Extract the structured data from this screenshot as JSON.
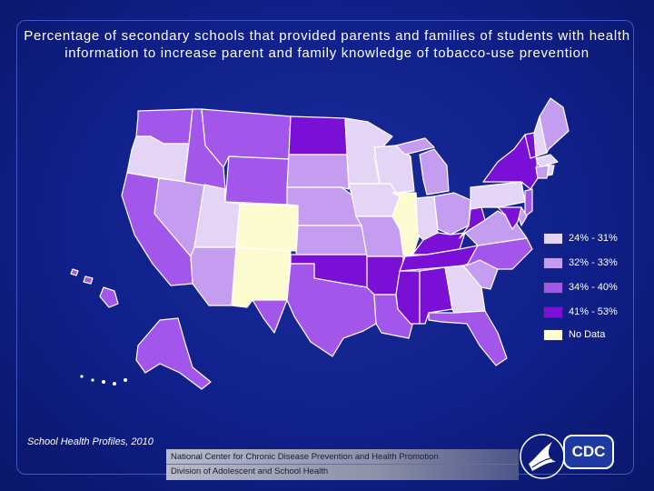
{
  "title": "Percentage of secondary schools that provided parents and families of students with health information to increase parent and family knowledge of tobacco-use prevention",
  "colors": {
    "c1": "#e4d4f6",
    "c2": "#c49cf0",
    "c3": "#a257ea",
    "c4": "#7a10d6",
    "nodata": "#fcfcd0",
    "background": "#10208a",
    "border": "#ffffff"
  },
  "legend": [
    {
      "label": "24% - 31%",
      "color_key": "c1"
    },
    {
      "label": "32% - 33%",
      "color_key": "c2"
    },
    {
      "label": "34% - 40%",
      "color_key": "c3"
    },
    {
      "label": "41% - 53%",
      "color_key": "c4"
    },
    {
      "label": "No Data",
      "color_key": "nodata"
    }
  ],
  "states": [
    {
      "id": "WA",
      "class": "c3"
    },
    {
      "id": "OR",
      "class": "c1"
    },
    {
      "id": "CA",
      "class": "c3"
    },
    {
      "id": "NV",
      "class": "c2"
    },
    {
      "id": "ID",
      "class": "c3"
    },
    {
      "id": "MT",
      "class": "c3"
    },
    {
      "id": "WY",
      "class": "c3"
    },
    {
      "id": "UT",
      "class": "c1"
    },
    {
      "id": "AZ",
      "class": "c2"
    },
    {
      "id": "CO",
      "class": "nodata"
    },
    {
      "id": "NM",
      "class": "nodata"
    },
    {
      "id": "ND",
      "class": "c4"
    },
    {
      "id": "SD",
      "class": "c2"
    },
    {
      "id": "NE",
      "class": "c2"
    },
    {
      "id": "KS",
      "class": "c2"
    },
    {
      "id": "OK",
      "class": "c4"
    },
    {
      "id": "TX",
      "class": "c3"
    },
    {
      "id": "MN",
      "class": "c1"
    },
    {
      "id": "IA",
      "class": "c1"
    },
    {
      "id": "MO",
      "class": "c2"
    },
    {
      "id": "AR",
      "class": "c4"
    },
    {
      "id": "LA",
      "class": "c3"
    },
    {
      "id": "WI",
      "class": "c1"
    },
    {
      "id": "IL",
      "class": "nodata"
    },
    {
      "id": "MI",
      "class": "c2"
    },
    {
      "id": "IN",
      "class": "c1"
    },
    {
      "id": "OH",
      "class": "c2"
    },
    {
      "id": "KY",
      "class": "c4"
    },
    {
      "id": "TN",
      "class": "c4"
    },
    {
      "id": "MS",
      "class": "c4"
    },
    {
      "id": "AL",
      "class": "c4"
    },
    {
      "id": "GA",
      "class": "c1"
    },
    {
      "id": "FL",
      "class": "c3"
    },
    {
      "id": "SC",
      "class": "c2"
    },
    {
      "id": "NC",
      "class": "c3"
    },
    {
      "id": "VA",
      "class": "c2"
    },
    {
      "id": "WV",
      "class": "c4"
    },
    {
      "id": "PA",
      "class": "c1"
    },
    {
      "id": "NY",
      "class": "c4"
    },
    {
      "id": "VT",
      "class": "c4"
    },
    {
      "id": "NH",
      "class": "c1"
    },
    {
      "id": "ME",
      "class": "c2"
    },
    {
      "id": "MA",
      "class": "c1"
    },
    {
      "id": "CT",
      "class": "c2"
    },
    {
      "id": "RI",
      "class": "c1"
    },
    {
      "id": "NJ",
      "class": "c3"
    },
    {
      "id": "DE",
      "class": "c2"
    },
    {
      "id": "MD",
      "class": "c4"
    },
    {
      "id": "AK",
      "class": "c3"
    },
    {
      "id": "HI",
      "class": "c3"
    }
  ],
  "source": "School Health Profiles, 2010",
  "footer": {
    "line1": "National Center for Chronic Disease Prevention and Health Promotion",
    "line2": "Division of Adolescent and School Health"
  },
  "logo": {
    "text": "CDC"
  }
}
